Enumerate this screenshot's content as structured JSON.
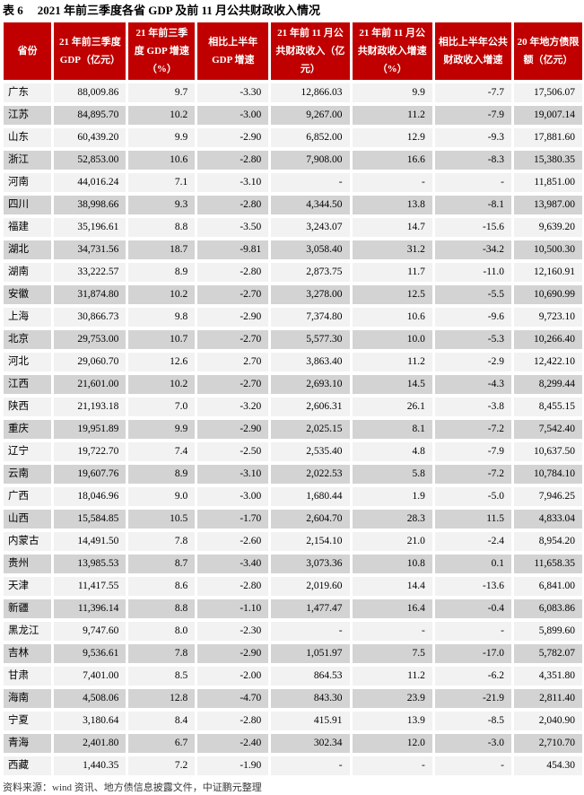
{
  "title": {
    "label": "表 6",
    "text": "2021 年前三季度各省 GDP 及前 11 月公共财政收入情况"
  },
  "footer": {
    "source_note": "资料来源：wind 资讯、地方债信息披露文件，中证鹏元整理"
  },
  "colors": {
    "header_bg": "#C00000",
    "header_text": "#FFFFFF",
    "row_light": "#F2F2F2",
    "row_dark": "#D3D3D3",
    "title_text": "#000000"
  },
  "chart_data": {
    "type": "table",
    "title": "2021 年前三季度各省 GDP 及前 11 月公共财政收入情况",
    "columns": [
      "省份",
      "21 年前三季度 GDP（亿元）",
      "21 年前三季度 GDP 增速（%）",
      "相比上半年 GDP 增速",
      "21 年前 11 月公共财政收入（亿元）",
      "21 年前 11 月公共财政收入增速（%）",
      "相比上半年公共财政收入增速",
      "20 年地方债限额（亿元）"
    ],
    "rows": [
      [
        "广东",
        "88,009.86",
        "9.7",
        "-3.30",
        "12,866.03",
        "9.9",
        "-7.7",
        "17,506.07"
      ],
      [
        "江苏",
        "84,895.70",
        "10.2",
        "-3.00",
        "9,267.00",
        "11.2",
        "-7.9",
        "19,007.14"
      ],
      [
        "山东",
        "60,439.20",
        "9.9",
        "-2.90",
        "6,852.00",
        "12.9",
        "-9.3",
        "17,881.60"
      ],
      [
        "浙江",
        "52,853.00",
        "10.6",
        "-2.80",
        "7,908.00",
        "16.6",
        "-8.3",
        "15,380.35"
      ],
      [
        "河南",
        "44,016.24",
        "7.1",
        "-3.10",
        "-",
        "-",
        "-",
        "11,851.00"
      ],
      [
        "四川",
        "38,998.66",
        "9.3",
        "-2.80",
        "4,344.50",
        "13.8",
        "-8.1",
        "13,987.00"
      ],
      [
        "福建",
        "35,196.61",
        "8.8",
        "-3.50",
        "3,243.07",
        "14.7",
        "-15.6",
        "9,639.20"
      ],
      [
        "湖北",
        "34,731.56",
        "18.7",
        "-9.81",
        "3,058.40",
        "31.2",
        "-34.2",
        "10,500.30"
      ],
      [
        "湖南",
        "33,222.57",
        "8.9",
        "-2.80",
        "2,873.75",
        "11.7",
        "-11.0",
        "12,160.91"
      ],
      [
        "安徽",
        "31,874.80",
        "10.2",
        "-2.70",
        "3,278.00",
        "12.5",
        "-5.5",
        "10,690.99"
      ],
      [
        "上海",
        "30,866.73",
        "9.8",
        "-2.90",
        "7,374.80",
        "10.6",
        "-9.6",
        "9,723.10"
      ],
      [
        "北京",
        "29,753.00",
        "10.7",
        "-2.70",
        "5,577.30",
        "10.0",
        "-5.3",
        "10,266.40"
      ],
      [
        "河北",
        "29,060.70",
        "12.6",
        "2.70",
        "3,863.40",
        "11.2",
        "-2.9",
        "12,422.10"
      ],
      [
        "江西",
        "21,601.00",
        "10.2",
        "-2.70",
        "2,693.10",
        "14.5",
        "-4.3",
        "8,299.44"
      ],
      [
        "陕西",
        "21,193.18",
        "7.0",
        "-3.20",
        "2,606.31",
        "26.1",
        "-3.8",
        "8,455.15"
      ],
      [
        "重庆",
        "19,951.89",
        "9.9",
        "-2.90",
        "2,025.15",
        "8.1",
        "-7.2",
        "7,542.40"
      ],
      [
        "辽宁",
        "19,722.70",
        "7.4",
        "-2.50",
        "2,535.40",
        "4.8",
        "-7.9",
        "10,637.50"
      ],
      [
        "云南",
        "19,607.76",
        "8.9",
        "-3.10",
        "2,022.53",
        "5.8",
        "-7.2",
        "10,784.10"
      ],
      [
        "广西",
        "18,046.96",
        "9.0",
        "-3.00",
        "1,680.44",
        "1.9",
        "-5.0",
        "7,946.25"
      ],
      [
        "山西",
        "15,584.85",
        "10.5",
        "-1.70",
        "2,604.70",
        "28.3",
        "11.5",
        "4,833.04"
      ],
      [
        "内蒙古",
        "14,491.50",
        "7.8",
        "-2.60",
        "2,154.10",
        "21.0",
        "-2.4",
        "8,954.20"
      ],
      [
        "贵州",
        "13,985.53",
        "8.7",
        "-3.40",
        "3,073.36",
        "10.8",
        "0.1",
        "11,658.35"
      ],
      [
        "天津",
        "11,417.55",
        "8.6",
        "-2.80",
        "2,019.60",
        "14.4",
        "-13.6",
        "6,841.00"
      ],
      [
        "新疆",
        "11,396.14",
        "8.8",
        "-1.10",
        "1,477.47",
        "16.4",
        "-0.4",
        "6,083.86"
      ],
      [
        "黑龙江",
        "9,747.60",
        "8.0",
        "-2.30",
        "-",
        "-",
        "-",
        "5,899.60"
      ],
      [
        "吉林",
        "9,536.61",
        "7.8",
        "-2.90",
        "1,051.97",
        "7.5",
        "-17.0",
        "5,782.07"
      ],
      [
        "甘肃",
        "7,401.00",
        "8.5",
        "-2.00",
        "864.53",
        "11.2",
        "-6.2",
        "4,351.80"
      ],
      [
        "海南",
        "4,508.06",
        "12.8",
        "-4.70",
        "843.30",
        "23.9",
        "-21.9",
        "2,811.40"
      ],
      [
        "宁夏",
        "3,180.64",
        "8.4",
        "-2.80",
        "415.91",
        "13.9",
        "-8.5",
        "2,040.90"
      ],
      [
        "青海",
        "2,401.80",
        "6.7",
        "-2.40",
        "302.34",
        "12.0",
        "-3.0",
        "2,710.70"
      ],
      [
        "西藏",
        "1,440.35",
        "7.2",
        "-1.90",
        "-",
        "-",
        "-",
        "454.30"
      ]
    ]
  }
}
